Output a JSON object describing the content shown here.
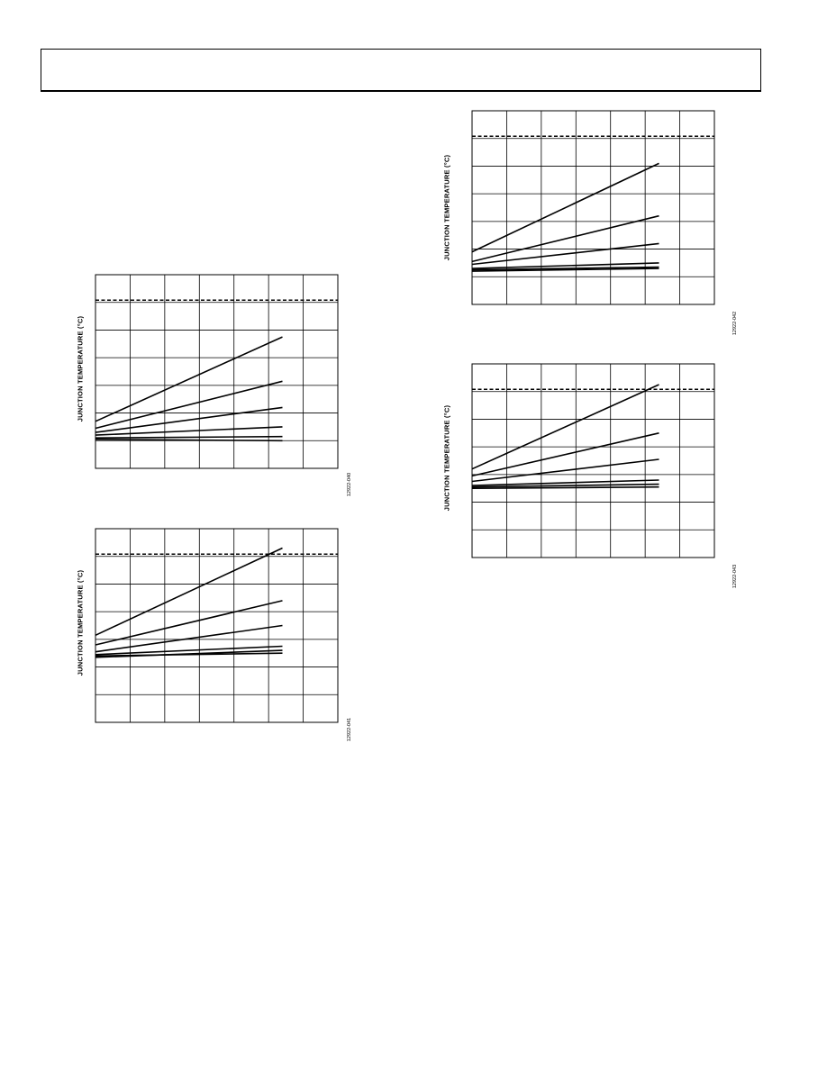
{
  "page": {
    "header": ""
  },
  "chart_data": [
    {
      "type": "line",
      "ylabel": "JUNCTION TEMPERATURE (°C)",
      "figure_id": "12922-040",
      "x_divisions": 7,
      "y_divisions": 7,
      "limit_line": 0.92,
      "series": [
        {
          "x": [
            0,
            5.4
          ],
          "y": [
            1.7,
            4.75
          ]
        },
        {
          "x": [
            0,
            5.4
          ],
          "y": [
            1.45,
            3.15
          ]
        },
        {
          "x": [
            0,
            5.4
          ],
          "y": [
            1.3,
            2.2
          ]
        },
        {
          "x": [
            0,
            5.4
          ],
          "y": [
            1.2,
            1.5
          ]
        },
        {
          "x": [
            0,
            5.4
          ],
          "y": [
            1.1,
            1.15
          ]
        },
        {
          "x": [
            0,
            5.4
          ],
          "y": [
            1.05,
            1.0
          ]
        }
      ]
    },
    {
      "type": "line",
      "ylabel": "JUNCTION TEMPERATURE (°C)",
      "figure_id": "12922-041",
      "x_divisions": 7,
      "y_divisions": 7,
      "limit_line": 0.92,
      "series": [
        {
          "x": [
            0,
            5.4
          ],
          "y": [
            3.15,
            6.3
          ]
        },
        {
          "x": [
            0,
            5.4
          ],
          "y": [
            2.8,
            4.4
          ]
        },
        {
          "x": [
            0,
            5.4
          ],
          "y": [
            2.55,
            3.5
          ]
        },
        {
          "x": [
            0,
            5.4
          ],
          "y": [
            2.45,
            2.75
          ]
        },
        {
          "x": [
            0,
            5.4
          ],
          "y": [
            2.4,
            2.5
          ]
        },
        {
          "x": [
            0,
            5.4
          ],
          "y": [
            2.35,
            2.6
          ]
        }
      ]
    },
    {
      "type": "line",
      "ylabel": "JUNCTION TEMPERATURE (°C)",
      "figure_id": "12922-042",
      "x_divisions": 7,
      "y_divisions": 7,
      "limit_line": 0.92,
      "series": [
        {
          "x": [
            0,
            5.4
          ],
          "y": [
            1.9,
            5.1
          ]
        },
        {
          "x": [
            0,
            5.4
          ],
          "y": [
            1.55,
            3.2
          ]
        },
        {
          "x": [
            0,
            5.4
          ],
          "y": [
            1.45,
            2.2
          ]
        },
        {
          "x": [
            0,
            5.4
          ],
          "y": [
            1.3,
            1.5
          ]
        },
        {
          "x": [
            0,
            5.4
          ],
          "y": [
            1.25,
            1.35
          ]
        },
        {
          "x": [
            0,
            5.4
          ],
          "y": [
            1.2,
            1.3
          ]
        }
      ]
    },
    {
      "type": "line",
      "ylabel": "JUNCTION TEMPERATURE (°C)",
      "figure_id": "12922-043",
      "x_divisions": 7,
      "y_divisions": 7,
      "limit_line": 0.92,
      "series": [
        {
          "x": [
            0,
            5.4
          ],
          "y": [
            3.2,
            6.25
          ]
        },
        {
          "x": [
            0,
            5.4
          ],
          "y": [
            2.95,
            4.5
          ]
        },
        {
          "x": [
            0,
            5.4
          ],
          "y": [
            2.75,
            3.55
          ]
        },
        {
          "x": [
            0,
            5.4
          ],
          "y": [
            2.6,
            2.8
          ]
        },
        {
          "x": [
            0,
            5.4
          ],
          "y": [
            2.55,
            2.65
          ]
        },
        {
          "x": [
            0,
            5.4
          ],
          "y": [
            2.5,
            2.55
          ]
        }
      ]
    }
  ]
}
